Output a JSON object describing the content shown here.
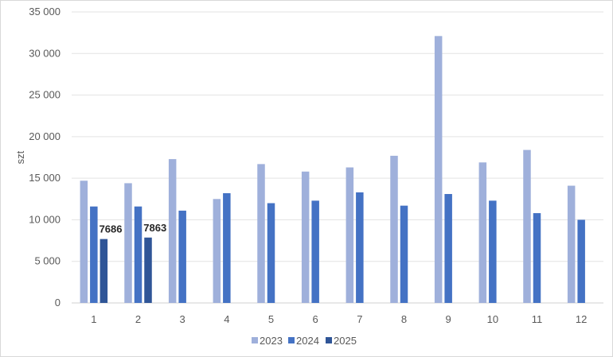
{
  "chart_data": {
    "type": "bar",
    "categories": [
      "1",
      "2",
      "3",
      "4",
      "5",
      "6",
      "7",
      "8",
      "9",
      "10",
      "11",
      "12"
    ],
    "series": [
      {
        "name": "2023",
        "color": "#9fb0db",
        "values": [
          14700,
          14400,
          17300,
          12500,
          16700,
          15800,
          16300,
          17700,
          32100,
          16900,
          18400,
          14100
        ]
      },
      {
        "name": "2024",
        "color": "#4472c4",
        "values": [
          11600,
          11600,
          11100,
          13200,
          12000,
          12300,
          13300,
          11700,
          13100,
          12300,
          10800,
          10000
        ]
      },
      {
        "name": "2025",
        "color": "#2f5597",
        "values": [
          7686,
          7863,
          null,
          null,
          null,
          null,
          null,
          null,
          null,
          null,
          null,
          null
        ]
      }
    ],
    "data_labels": {
      "2025": [
        "7686",
        "7863"
      ]
    },
    "ylabel": "szt",
    "xlabel": "",
    "ylim": [
      0,
      35000
    ],
    "yticks": [
      0,
      5000,
      10000,
      15000,
      20000,
      25000,
      30000,
      35000
    ],
    "ytick_labels": [
      "0",
      "5 000",
      "10 000",
      "15 000",
      "20 000",
      "25 000",
      "30 000",
      "35 000"
    ],
    "grid": true,
    "legend_position": "bottom"
  }
}
